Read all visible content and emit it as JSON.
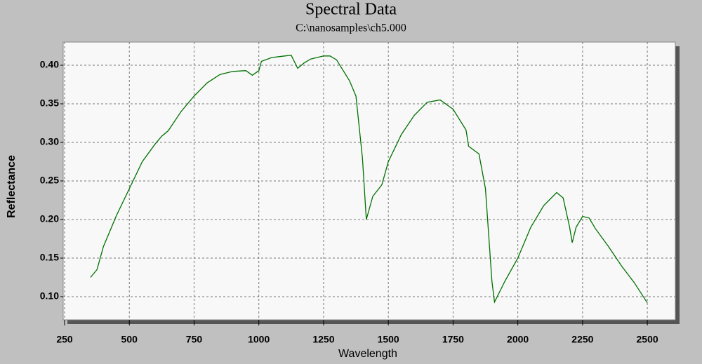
{
  "chart_data": {
    "type": "line",
    "title": "Spectral Data",
    "subtitle": "C:\\nanosamples\\ch5.000",
    "x_label": "Wavelength",
    "y_label": "Reflectance",
    "x": [
      350,
      375,
      400,
      450,
      500,
      550,
      600,
      625,
      650,
      700,
      750,
      800,
      850,
      900,
      950,
      975,
      1000,
      1010,
      1050,
      1100,
      1125,
      1150,
      1175,
      1200,
      1250,
      1275,
      1300,
      1350,
      1375,
      1400,
      1415,
      1440,
      1475,
      1500,
      1550,
      1600,
      1650,
      1700,
      1750,
      1800,
      1810,
      1850,
      1875,
      1900,
      1910,
      1950,
      2000,
      2050,
      2100,
      2150,
      2175,
      2200,
      2210,
      2225,
      2250,
      2275,
      2300,
      2350,
      2400,
      2450,
      2500
    ],
    "series": [
      {
        "name": "ch5.000",
        "color": "#007000",
        "values": [
          0.125,
          0.135,
          0.165,
          0.205,
          0.24,
          0.275,
          0.298,
          0.308,
          0.315,
          0.34,
          0.36,
          0.377,
          0.388,
          0.392,
          0.393,
          0.387,
          0.393,
          0.405,
          0.41,
          0.412,
          0.413,
          0.396,
          0.403,
          0.408,
          0.412,
          0.412,
          0.407,
          0.38,
          0.36,
          0.28,
          0.2,
          0.23,
          0.245,
          0.275,
          0.31,
          0.335,
          0.352,
          0.355,
          0.343,
          0.316,
          0.295,
          0.285,
          0.24,
          0.12,
          0.093,
          0.12,
          0.15,
          0.19,
          0.218,
          0.235,
          0.228,
          0.19,
          0.17,
          0.19,
          0.204,
          0.202,
          0.188,
          0.165,
          0.14,
          0.118,
          0.092
        ]
      }
    ],
    "xlim": [
      250,
      2600
    ],
    "ylim": [
      0.07,
      0.43
    ],
    "xticks": [
      250,
      500,
      750,
      1000,
      1250,
      1500,
      1750,
      2000,
      2250,
      2500
    ],
    "yticks": [
      {
        "value": 0.1,
        "label": "0.10"
      },
      0.15,
      {
        "value": 0.2,
        "label": "0.20"
      },
      0.25,
      {
        "value": 0.3,
        "label": "0.30"
      },
      0.35,
      {
        "value": 0.4,
        "label": "0.40"
      }
    ],
    "grid": true
  }
}
